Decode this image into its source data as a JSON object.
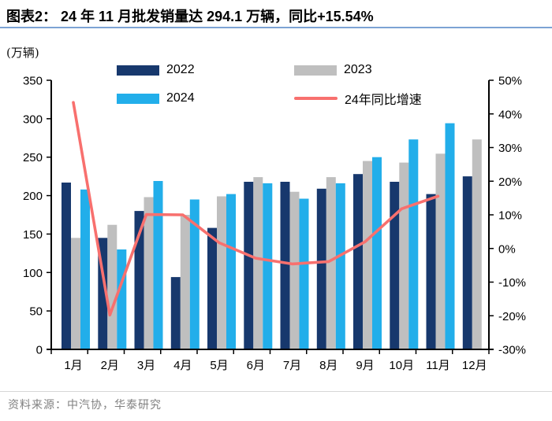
{
  "header": {
    "title": "图表2：  24 年 11 月批发销量达 294.1 万辆，同比+15.54%",
    "rule_color": "#7ca3d4"
  },
  "footer": {
    "source_text": "资料来源：中汽协，华泰研究"
  },
  "chart_data": {
    "type": "bar",
    "subtype": "grouped-bars-with-line",
    "title": "24 年 11 月批发销量达 294.1 万辆，同比+15.54%",
    "unit_label": "(万辆)",
    "categories": [
      "1月",
      "2月",
      "3月",
      "4月",
      "5月",
      "6月",
      "7月",
      "8月",
      "9月",
      "10月",
      "11月",
      "12月"
    ],
    "left_axis": {
      "label": "万辆",
      "min": 0,
      "max": 350,
      "step": 50,
      "ticks": [
        350,
        300,
        250,
        200,
        150,
        100,
        50,
        0
      ]
    },
    "right_axis": {
      "label": "%",
      "min": -30,
      "max": 50,
      "step": 10,
      "ticks": [
        "50%",
        "40%",
        "30%",
        "20%",
        "10%",
        "0%",
        "-10%",
        "-20%",
        "-30%"
      ]
    },
    "grid": false,
    "legend_position": "top-inside",
    "series": [
      {
        "name": "2022",
        "type": "bar",
        "axis": "left",
        "color": "#17386d",
        "values": [
          217,
          145,
          180,
          94,
          158,
          218,
          218,
          209,
          228,
          218,
          202,
          225
        ]
      },
      {
        "name": "2023",
        "type": "bar",
        "axis": "left",
        "color": "#bfbfbf",
        "values": [
          145,
          162,
          198,
          175,
          199,
          224,
          205,
          224,
          245,
          243,
          254.5,
          273
        ]
      },
      {
        "name": "2024",
        "type": "bar",
        "axis": "left",
        "color": "#22aeea",
        "values": [
          208,
          130,
          219,
          195,
          202,
          216,
          196,
          216,
          250,
          273,
          294.1,
          null
        ]
      },
      {
        "name": "24年同比增速",
        "type": "line",
        "axis": "right",
        "color": "#f8706e",
        "values": [
          43.4,
          -19.8,
          10.1,
          10.0,
          1.7,
          -2.9,
          -4.6,
          -3.9,
          2.0,
          11.8,
          15.54,
          null
        ]
      }
    ]
  }
}
